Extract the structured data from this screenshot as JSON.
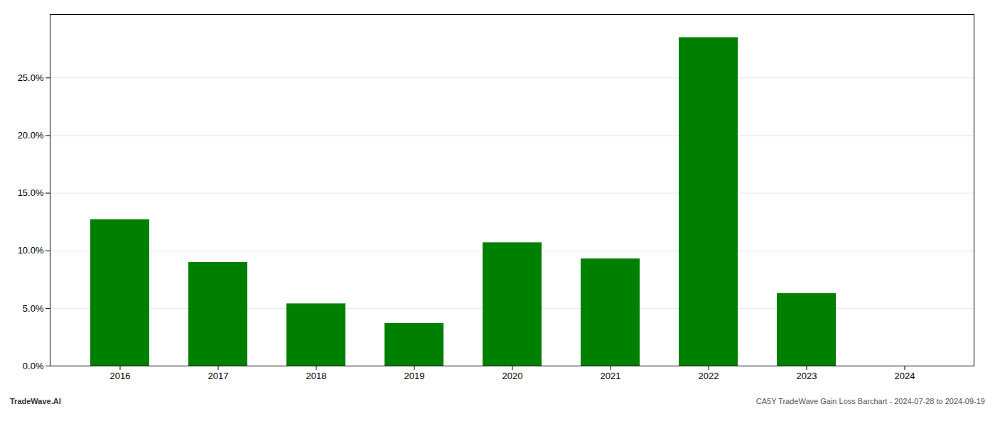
{
  "chart_data": {
    "type": "bar",
    "categories": [
      "2016",
      "2017",
      "2018",
      "2019",
      "2020",
      "2021",
      "2022",
      "2023",
      "2024"
    ],
    "values": [
      0.127,
      0.09,
      0.054,
      0.037,
      0.107,
      0.093,
      0.285,
      0.063,
      0.0
    ],
    "color": "#008000",
    "ylim": [
      0.0,
      0.305
    ],
    "yticks": [
      {
        "value": 0.0,
        "label": "0.0%"
      },
      {
        "value": 0.05,
        "label": "5.0%"
      },
      {
        "value": 0.1,
        "label": "10.0%"
      },
      {
        "value": 0.15,
        "label": "15.0%"
      },
      {
        "value": 0.2,
        "label": "20.0%"
      },
      {
        "value": 0.25,
        "label": "25.0%"
      }
    ],
    "grid": true,
    "annotations": [
      "TradeWave.AI",
      "CA5Y TradeWave Gain Loss Barchart - 2024-07-28 to 2024-09-19"
    ]
  }
}
